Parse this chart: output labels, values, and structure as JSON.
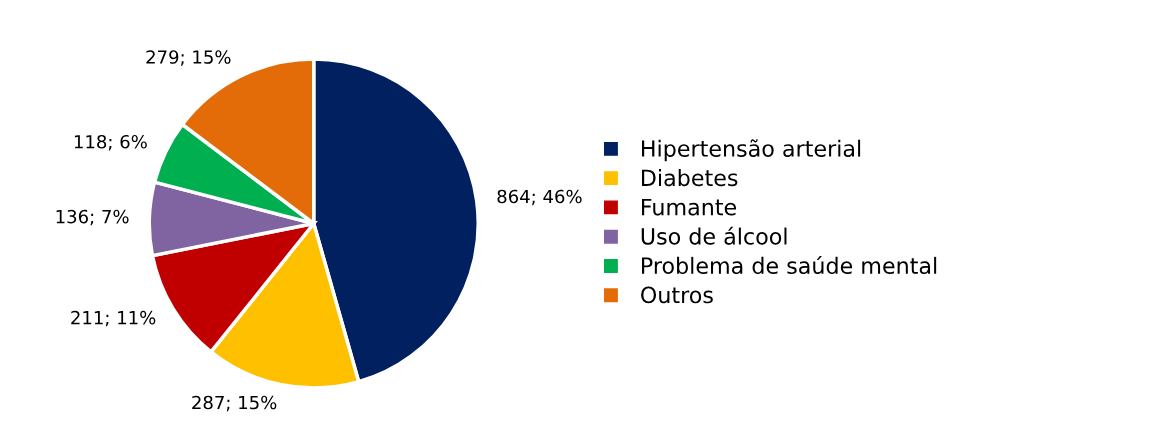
{
  "chart_data": {
    "type": "pie",
    "categories": [
      "Hipertensão arterial",
      "Diabetes",
      "Fumante",
      "Uso de álcool",
      "Problema de saúde mental",
      "Outros"
    ],
    "values": [
      864,
      287,
      211,
      136,
      118,
      279
    ],
    "colors": [
      "#002060",
      "#ffc000",
      "#c00000",
      "#8064a2",
      "#00b050",
      "#e36c09"
    ],
    "value_labels": [
      "864; 46%",
      "287; 15%",
      "211; 11%",
      "136; 7%",
      "118; 6%",
      "279; 15%"
    ],
    "legend": "right"
  }
}
